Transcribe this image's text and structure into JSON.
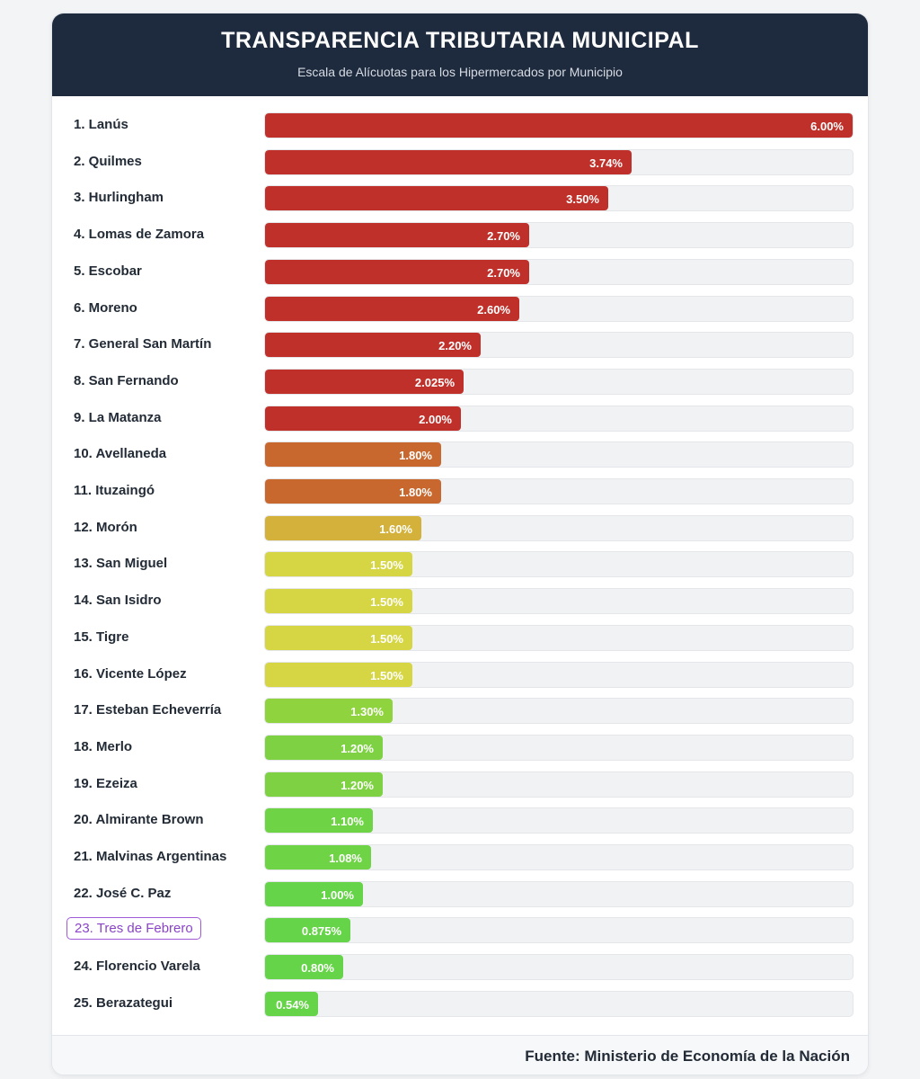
{
  "header": {
    "title": "TRANSPARENCIA TRIBUTARIA MUNICIPAL",
    "subtitle": "Escala de Alícuotas para los Hipermercados por Municipio"
  },
  "chart_data": {
    "type": "bar",
    "orientation": "horizontal",
    "title": "TRANSPARENCIA TRIBUTARIA MUNICIPAL",
    "subtitle": "Escala de Alícuotas para los Hipermercados por Municipio",
    "xlim": [
      0,
      6
    ],
    "grid": false,
    "legend": "none",
    "highlighted": "23. Tres de Febrero",
    "categories": [
      "1. Lanús",
      "2. Quilmes",
      "3. Hurlingham",
      "4. Lomas de Zamora",
      "5. Escobar",
      "6. Moreno",
      "7. General San Martín",
      "8. San Fernando",
      "9. La Matanza",
      "10. Avellaneda",
      "11. Ituzaingó",
      "12. Morón",
      "13. San Miguel",
      "14. San Isidro",
      "15. Tigre",
      "16. Vicente López",
      "17. Esteban Echeverría",
      "18. Merlo",
      "19. Ezeiza",
      "20. Almirante Brown",
      "21. Malvinas Argentinas",
      "22. José C. Paz",
      "23. Tres de Febrero",
      "24. Florencio Varela",
      "25. Berazategui"
    ],
    "values": [
      6.0,
      3.74,
      3.5,
      2.7,
      2.7,
      2.6,
      2.2,
      2.025,
      2.0,
      1.8,
      1.8,
      1.6,
      1.5,
      1.5,
      1.5,
      1.5,
      1.3,
      1.2,
      1.2,
      1.1,
      1.08,
      1.0,
      0.875,
      0.8,
      0.54
    ],
    "value_labels": [
      "6.00%",
      "3.74%",
      "3.50%",
      "2.70%",
      "2.70%",
      "2.60%",
      "2.20%",
      "2.025%",
      "2.00%",
      "1.80%",
      "1.80%",
      "1.60%",
      "1.50%",
      "1.50%",
      "1.50%",
      "1.50%",
      "1.30%",
      "1.20%",
      "1.20%",
      "1.10%",
      "1.08%",
      "1.00%",
      "0.875%",
      "0.80%",
      "0.54%"
    ],
    "colors": [
      "#c0302a",
      "#c0302a",
      "#c0302a",
      "#c0302a",
      "#c0302a",
      "#c0302a",
      "#c0302a",
      "#c0302a",
      "#c0302a",
      "#c9682e",
      "#c9682e",
      "#d3b13b",
      "#d6d645",
      "#d6d645",
      "#d6d645",
      "#d6d645",
      "#8fd43f",
      "#7dd142",
      "#7dd142",
      "#6fd445",
      "#6fd445",
      "#66d448",
      "#66d448",
      "#66d448",
      "#66d448"
    ]
  },
  "footer": {
    "source": "Fuente: Ministerio de Economía de la Nación"
  }
}
